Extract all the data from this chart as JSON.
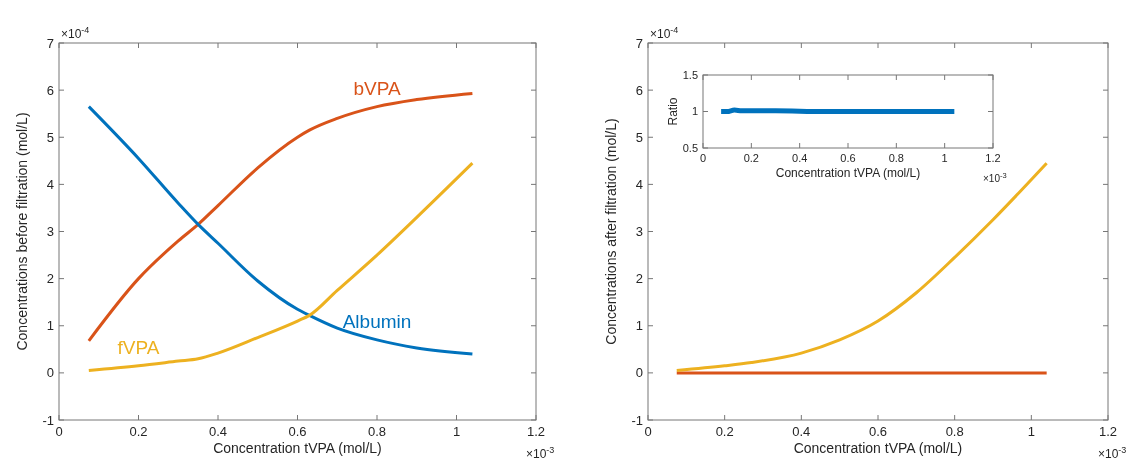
{
  "chart_data": [
    {
      "type": "line",
      "xlabel": "Concentration tVPA (mol/L)",
      "ylabel": "Concentrations before filtration (mol/L)",
      "xlim": [
        0,
        1.2
      ],
      "xticks": [
        0,
        0.2,
        0.4,
        0.6,
        0.8,
        1,
        1.2
      ],
      "ylim": [
        -1,
        7
      ],
      "yticks": [
        -1,
        0,
        1,
        2,
        3,
        4,
        5,
        6,
        7
      ],
      "grid": false,
      "annotations": [
        "×10$^{-4}$",
        "×10$^{-3}$"
      ],
      "x": [
        0.075,
        0.2,
        0.3,
        0.35,
        0.4,
        0.5,
        0.6,
        0.63,
        0.7,
        0.8,
        0.9,
        1.04
      ],
      "series": [
        {
          "name": "bVPA",
          "color": "#d95319",
          "values": [
            0.68,
            2.0,
            2.8,
            3.15,
            3.55,
            4.35,
            5.0,
            5.15,
            5.4,
            5.65,
            5.8,
            5.93
          ]
        },
        {
          "name": "Albumin",
          "color": "#0072bd",
          "values": [
            5.65,
            4.55,
            3.6,
            3.15,
            2.75,
            1.95,
            1.35,
            1.22,
            0.95,
            0.7,
            0.53,
            0.4
          ]
        },
        {
          "name": "fVPA",
          "color": "#edb120",
          "values": [
            0.05,
            0.15,
            0.25,
            0.3,
            0.42,
            0.75,
            1.1,
            1.22,
            1.75,
            2.5,
            3.3,
            4.45
          ]
        }
      ]
    },
    {
      "type": "line",
      "xlabel": "Concentration tVPA (mol/L)",
      "ylabel": "Concentrations after filtration (mol/L)",
      "xlim": [
        0,
        1.2
      ],
      "xticks": [
        0,
        0.2,
        0.4,
        0.6,
        0.8,
        1,
        1.2
      ],
      "ylim": [
        -1,
        7
      ],
      "yticks": [
        -1,
        0,
        1,
        2,
        3,
        4,
        5,
        6,
        7
      ],
      "grid": false,
      "annotations": [
        "×10$^{-4}$",
        "×10$^{-3}$"
      ],
      "x": [
        0.075,
        0.2,
        0.27,
        0.4,
        0.5,
        0.6,
        0.7,
        0.8,
        0.9,
        1.04
      ],
      "series": [
        {
          "color": "#d95319",
          "values": [
            0,
            0,
            0,
            0,
            0,
            0,
            0,
            0,
            0,
            0
          ]
        },
        {
          "color": "#edb120",
          "values": [
            0.05,
            0.15,
            0.22,
            0.42,
            0.7,
            1.1,
            1.7,
            2.45,
            3.25,
            4.45
          ]
        }
      ]
    },
    {
      "type": "line",
      "xlabel": "Concentration tVPA (mol/L)",
      "ylabel": "Ratio",
      "xlim": [
        0,
        1.2
      ],
      "xticks": [
        0,
        0.2,
        0.4,
        0.6,
        0.8,
        1,
        1.2
      ],
      "ylim": [
        0.5,
        1.5
      ],
      "yticks": [
        0.5,
        1,
        1.5
      ],
      "grid": false,
      "annotations": [
        "×10$^{-3}$"
      ],
      "x": [
        0.075,
        0.1,
        0.13,
        0.16,
        0.2,
        0.3,
        0.5,
        0.7,
        0.9,
        1.04
      ],
      "series": [
        {
          "color": "#0072bd",
          "values": [
            1,
            1,
            1.02,
            1.01,
            1.01,
            1.01,
            1,
            1,
            1,
            1
          ]
        }
      ]
    }
  ]
}
